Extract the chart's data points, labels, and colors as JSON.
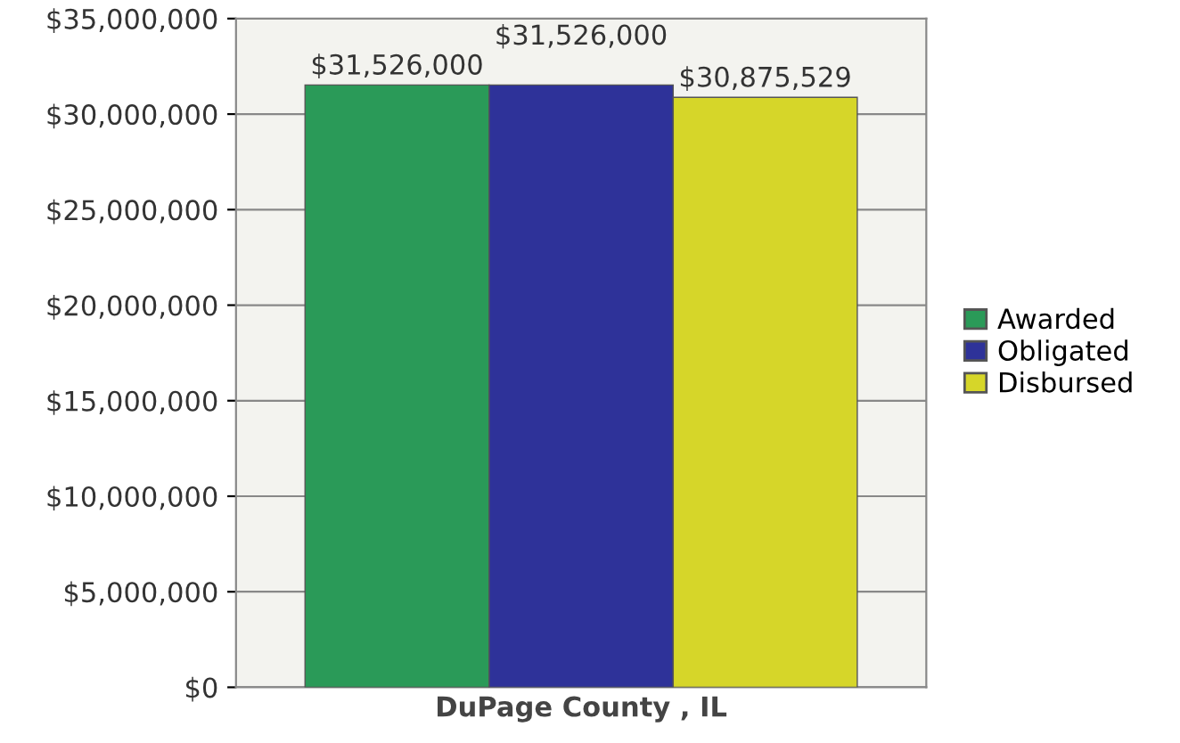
{
  "chart_data": {
    "type": "bar",
    "categories": [
      "DuPage County , IL"
    ],
    "series": [
      {
        "name": "Awarded",
        "color": "#2a9a58",
        "values": [
          31526000
        ],
        "value_labels": [
          "$31,526,000"
        ]
      },
      {
        "name": "Obligated",
        "color": "#2e3299",
        "values": [
          31526000
        ],
        "value_labels": [
          "$31,526,000"
        ]
      },
      {
        "name": "Disbursed",
        "color": "#d6d629",
        "values": [
          30875529
        ],
        "value_labels": [
          "$30,875,529"
        ]
      }
    ],
    "ylim": [
      0,
      35000000
    ],
    "yticks": [
      {
        "value": 0,
        "label": "$0"
      },
      {
        "value": 5000000,
        "label": "$5,000,000"
      },
      {
        "value": 10000000,
        "label": "$10,000,000"
      },
      {
        "value": 15000000,
        "label": "$15,000,000"
      },
      {
        "value": 20000000,
        "label": "$20,000,000"
      },
      {
        "value": 25000000,
        "label": "$25,000,000"
      },
      {
        "value": 30000000,
        "label": "$30,000,000"
      },
      {
        "value": 35000000,
        "label": "$35,000,000"
      }
    ],
    "grid": "y",
    "legend": "right"
  }
}
